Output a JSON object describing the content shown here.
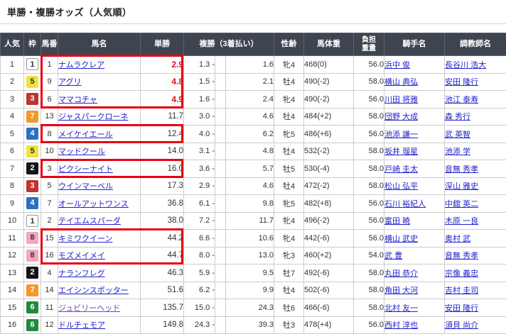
{
  "header": {
    "title": "単勝・複勝オッズ（人気順）"
  },
  "table": {
    "columns": [
      "人気",
      "枠",
      "馬番",
      "馬名",
      "単勝",
      "複勝（3着払い）",
      "性齢",
      "馬体重",
      "負担重量",
      "騎手名",
      "調教師名"
    ],
    "burden_lines": [
      "負担",
      "重量"
    ],
    "place_separator": "-",
    "rows": [
      {
        "rank": "1",
        "waku": 1,
        "num": "1",
        "name": "ナムラクレア",
        "win": "2.9",
        "win_red": true,
        "place_low": "1.3",
        "place_high": "1.6",
        "sexage": "牝4",
        "weight": "468(0)",
        "burden": "56.0",
        "jockey": "浜中 俊",
        "trainer": "長谷川 浩大",
        "visited": false
      },
      {
        "rank": "2",
        "waku": 5,
        "num": "9",
        "name": "アグリ",
        "win": "4.8",
        "win_red": true,
        "place_low": "1.5",
        "place_high": "2.1",
        "sexage": "牡4",
        "weight": "490(-2)",
        "burden": "58.0",
        "jockey": "横山 典弘",
        "trainer": "安田 隆行",
        "visited": false
      },
      {
        "rank": "3",
        "waku": 3,
        "num": "6",
        "name": "ママコチャ",
        "win": "4.9",
        "win_red": true,
        "place_low": "1.6",
        "place_high": "2.4",
        "sexage": "牝4",
        "weight": "490(-2)",
        "burden": "56.0",
        "jockey": "川田 将雅",
        "trainer": "池江 泰寿",
        "visited": false
      },
      {
        "rank": "4",
        "waku": 7,
        "num": "13",
        "name": "ジャスパークローネ",
        "win": "11.7",
        "win_red": false,
        "place_low": "3.0",
        "place_high": "4.6",
        "sexage": "牡4",
        "weight": "484(+2)",
        "burden": "58.0",
        "jockey": "団野 大成",
        "trainer": "森 秀行",
        "visited": false
      },
      {
        "rank": "5",
        "waku": 4,
        "num": "8",
        "name": "メイケイエール",
        "win": "12.4",
        "win_red": false,
        "place_low": "4.0",
        "place_high": "6.2",
        "sexage": "牝5",
        "weight": "486(+6)",
        "burden": "56.0",
        "jockey": "池添 謙一",
        "trainer": "武 英智",
        "visited": false
      },
      {
        "rank": "6",
        "waku": 5,
        "num": "10",
        "name": "マッドクール",
        "win": "14.0",
        "win_red": false,
        "place_low": "3.1",
        "place_high": "4.8",
        "sexage": "牡4",
        "weight": "532(-2)",
        "burden": "58.0",
        "jockey": "坂井 瑠星",
        "trainer": "池添 学",
        "visited": false
      },
      {
        "rank": "7",
        "waku": 2,
        "num": "3",
        "name": "ピクシーナイト",
        "win": "16.0",
        "win_red": false,
        "place_low": "3.6",
        "place_high": "5.7",
        "sexage": "牡5",
        "weight": "530(-4)",
        "burden": "58.0",
        "jockey": "戸崎 圭太",
        "trainer": "音無 秀孝",
        "visited": false
      },
      {
        "rank": "8",
        "waku": 3,
        "num": "5",
        "name": "ウインマーベル",
        "win": "17.3",
        "win_red": false,
        "place_low": "2.9",
        "place_high": "4.6",
        "sexage": "牡4",
        "weight": "472(-2)",
        "burden": "58.0",
        "jockey": "松山 弘平",
        "trainer": "深山 雅史",
        "visited": false
      },
      {
        "rank": "9",
        "waku": 4,
        "num": "7",
        "name": "オールアットワンス",
        "win": "36.8",
        "win_red": false,
        "place_low": "6.1",
        "place_high": "9.8",
        "sexage": "牝5",
        "weight": "482(+8)",
        "burden": "56.0",
        "jockey": "石川 裕紀人",
        "trainer": "中舘 英二",
        "visited": false
      },
      {
        "rank": "10",
        "waku": 1,
        "num": "2",
        "name": "テイエムスパーダ",
        "win": "38.0",
        "win_red": false,
        "place_low": "7.2",
        "place_high": "11.7",
        "sexage": "牝4",
        "weight": "496(-2)",
        "burden": "56.0",
        "jockey": "富田 暁",
        "trainer": "木原 一良",
        "visited": false
      },
      {
        "rank": "11",
        "waku": 8,
        "num": "15",
        "name": "キミワクイーン",
        "win": "44.2",
        "win_red": false,
        "place_low": "6.6",
        "place_high": "10.6",
        "sexage": "牝4",
        "weight": "442(-6)",
        "burden": "56.0",
        "jockey": "横山 武史",
        "trainer": "奥村 武",
        "visited": false
      },
      {
        "rank": "12",
        "waku": 8,
        "num": "16",
        "name": "モズメイメイ",
        "win": "44.7",
        "win_red": false,
        "place_low": "8.0",
        "place_high": "13.0",
        "sexage": "牝3",
        "weight": "460(+2)",
        "burden": "54.0",
        "jockey": "武 豊",
        "trainer": "音無 秀孝",
        "visited": false
      },
      {
        "rank": "13",
        "waku": 2,
        "num": "4",
        "name": "ナランフレグ",
        "win": "46.3",
        "win_red": false,
        "place_low": "5.9",
        "place_high": "9.5",
        "sexage": "牡7",
        "weight": "492(-6)",
        "burden": "58.0",
        "jockey": "丸田 恭介",
        "trainer": "宗像 義忠",
        "visited": false
      },
      {
        "rank": "14",
        "waku": 7,
        "num": "14",
        "name": "エイシンスポッター",
        "win": "51.6",
        "win_red": false,
        "place_low": "6.2",
        "place_high": "9.9",
        "sexage": "牡4",
        "weight": "502(-6)",
        "burden": "58.0",
        "jockey": "角田 大河",
        "trainer": "吉村 圭司",
        "visited": false
      },
      {
        "rank": "15",
        "waku": 6,
        "num": "11",
        "name": "ジュビリーヘッド",
        "win": "135.7",
        "win_red": false,
        "place_low": "15.0",
        "place_high": "24.3",
        "sexage": "牡6",
        "weight": "466(-6)",
        "burden": "58.0",
        "jockey": "北村 友一",
        "trainer": "安田 隆行",
        "visited": true
      },
      {
        "rank": "16",
        "waku": 6,
        "num": "12",
        "name": "ドルチェモア",
        "win": "149.8",
        "win_red": false,
        "place_low": "24.3",
        "place_high": "39.3",
        "sexage": "牡3",
        "weight": "478(+4)",
        "burden": "56.0",
        "jockey": "西村 淳也",
        "trainer": "須貝 尚介",
        "visited": false
      }
    ]
  },
  "annotations": {
    "highlight_color": "#e60012",
    "highlight_boxes": [
      {
        "row_start": 1,
        "row_end": 3
      },
      {
        "row_start": 5,
        "row_end": 5
      },
      {
        "row_start": 7,
        "row_end": 7
      },
      {
        "row_start": 11,
        "row_end": 12
      }
    ]
  },
  "colors": {
    "header_bg": "#3e4450",
    "link_blue": "#2222cc",
    "visited_purple": "#7045c0",
    "odds_red": "#d8121f",
    "highlight_red": "#e60012",
    "frame_colors": {
      "1": "#ffffff",
      "2": "#151515",
      "3": "#bd3432",
      "4": "#2d6fc0",
      "5": "#f0e33c",
      "6": "#1f8a3d",
      "7": "#f4982b",
      "8": "#f2a6c2"
    }
  }
}
